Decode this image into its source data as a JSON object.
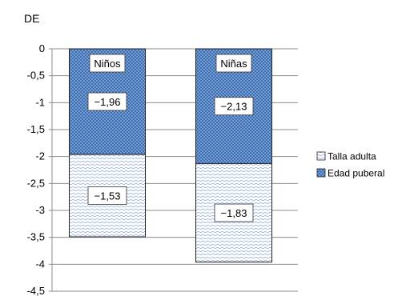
{
  "chart_data": {
    "type": "bar",
    "stacked": true,
    "ylabel": "DE",
    "xlabel": "",
    "title": "",
    "ylim": [
      -4.5,
      0
    ],
    "y_ticks": [
      0,
      -0.5,
      -1,
      -1.5,
      -2,
      -2.5,
      -3,
      -3.5,
      -4,
      -4.5
    ],
    "y_tick_labels": [
      "0",
      "-0,5",
      "-1",
      "-1,5",
      "-2",
      "-2,5",
      "-3",
      "-3,5",
      "-4",
      "-4,5"
    ],
    "grid": true,
    "legend_position": "right",
    "categories": [
      "Niños",
      "Niñas"
    ],
    "series": [
      {
        "name": "Edad puberal",
        "values": [
          -1.96,
          -2.13
        ],
        "labels": [
          "−1,96",
          "−2,13"
        ],
        "color": "#3d6fb5"
      },
      {
        "name": "Talla adulta",
        "values": [
          -1.53,
          -1.83
        ],
        "labels": [
          "−1,53",
          "−1,83"
        ],
        "color": "#e6edf7"
      }
    ],
    "legend": [
      "Talla adulta",
      "Edad puberal"
    ]
  }
}
